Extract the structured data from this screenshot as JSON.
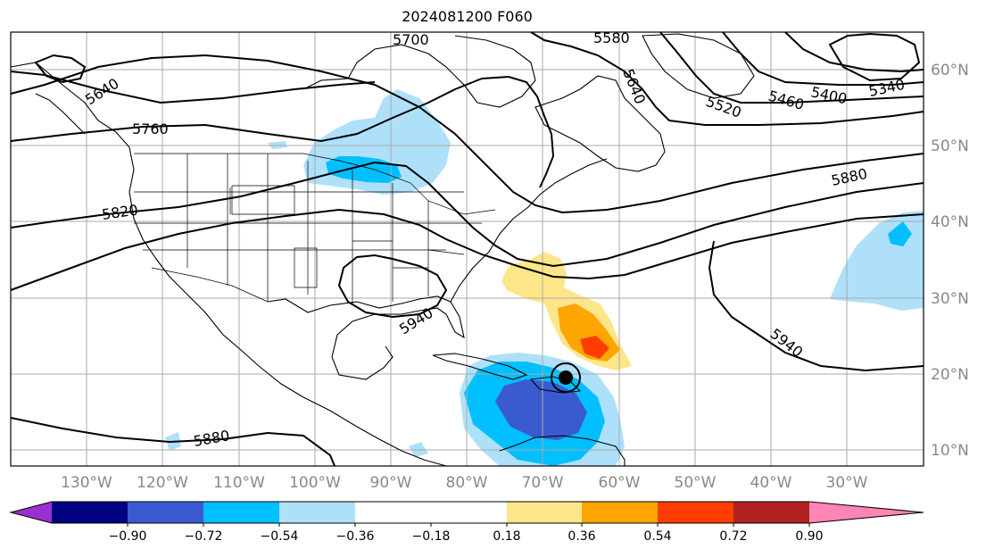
{
  "title": "2024081200 F060",
  "map": {
    "lon_ticks": [
      "130°W",
      "120°W",
      "110°W",
      "100°W",
      "90°W",
      "80°W",
      "70°W",
      "60°W",
      "50°W",
      "40°W",
      "30°W"
    ],
    "lat_ticks": [
      "60°N",
      "50°N",
      "40°N",
      "30°N",
      "20°N",
      "10°N"
    ],
    "contour_labels": [
      "5700",
      "5580",
      "5640",
      "5640",
      "5520",
      "5460",
      "5400",
      "5340",
      "5760",
      "5880",
      "5820",
      "5940",
      "5940",
      "5880"
    ],
    "storm_marker": "tropical-cyclone-icon"
  },
  "colorbar": {
    "labels": [
      "−0.90",
      "−0.72",
      "−0.54",
      "−0.36",
      "−0.18",
      "0.18",
      "0.36",
      "0.54",
      "0.72",
      "0.90"
    ],
    "colors": [
      "#9b30d0",
      "#000080",
      "#3a5bcf",
      "#00bfff",
      "#aee0fa",
      "#ffffff",
      "#fde68a",
      "#ffa500",
      "#ff3d00",
      "#b22222",
      "#ff85b4"
    ]
  }
}
